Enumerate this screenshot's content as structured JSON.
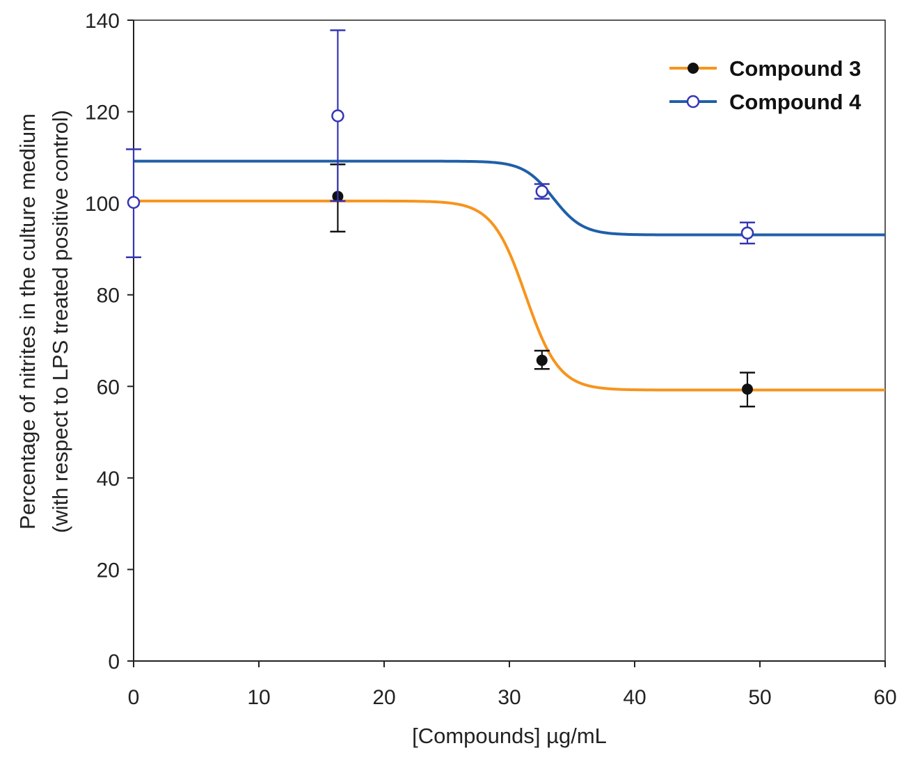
{
  "chart_data": {
    "type": "line",
    "title": "",
    "xlabel": "[Compounds] µg/mL",
    "ylabel_line1": "Percentage of nitrites in the culture medium",
    "ylabel_line2": "(with respect to LPS treated positive control)",
    "xlim": [
      0,
      60
    ],
    "ylim": [
      0,
      140
    ],
    "xticks": [
      0,
      10,
      20,
      30,
      40,
      50,
      60
    ],
    "yticks": [
      0,
      20,
      40,
      60,
      80,
      100,
      120,
      140
    ],
    "xtick_labels": [
      "0",
      "10",
      "20",
      "30",
      "40",
      "50",
      "60"
    ],
    "ytick_labels": [
      "0",
      "20",
      "40",
      "60",
      "80",
      "100",
      "120",
      "140"
    ],
    "grid": false,
    "legend_position": "top-right",
    "series": [
      {
        "name": "Compound 3",
        "color": "#f7941d",
        "marker": "filled-circle",
        "marker_color": "#111111",
        "error_color": "#111111",
        "points": [
          {
            "x": 16.3,
            "y": 101.5,
            "err_low": 93.8,
            "err_high": 108.5
          },
          {
            "x": 32.6,
            "y": 65.7,
            "err_low": 63.8,
            "err_high": 67.8
          },
          {
            "x": 49.0,
            "y": 59.4,
            "err_low": 55.6,
            "err_high": 63.0
          }
        ],
        "fit": {
          "model": "sigmoid",
          "top": 100.5,
          "bottom": 59.2,
          "ec50": 31.3,
          "slope": 0.75
        }
      },
      {
        "name": "Compound 4",
        "color": "#1f5fa8",
        "marker": "open-circle",
        "marker_color": "#3535b5",
        "error_color": "#3535b5",
        "points": [
          {
            "x": 0,
            "y": 100.2,
            "err_low": 88.2,
            "err_high": 111.8
          },
          {
            "x": 16.3,
            "y": 119.1,
            "err_low": 100.5,
            "err_high": 137.8
          },
          {
            "x": 32.6,
            "y": 102.6,
            "err_low": 101.0,
            "err_high": 104.2
          },
          {
            "x": 49.0,
            "y": 93.5,
            "err_low": 91.2,
            "err_high": 95.8
          }
        ],
        "fit": {
          "model": "sigmoid",
          "top": 109.2,
          "bottom": 93.1,
          "ec50": 33.5,
          "slope": 0.85
        }
      }
    ]
  }
}
